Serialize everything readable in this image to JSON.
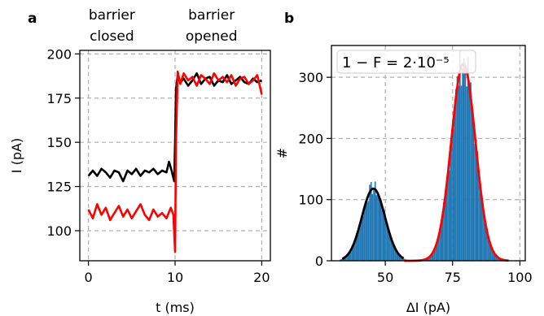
{
  "chart_data": [
    {
      "panel_label": "a",
      "type": "line",
      "annotations": [
        {
          "text": "barrier",
          "x": 2.7
        },
        {
          "text": "closed",
          "x": 2.7
        },
        {
          "text": "barrier",
          "x": 14.2
        },
        {
          "text": "opened",
          "x": 14.2
        }
      ],
      "xlabel": "t (ms)",
      "ylabel": "I (pA)",
      "xlim": [
        -1,
        21
      ],
      "ylim": [
        83,
        202
      ],
      "xticks": [
        0,
        10,
        20
      ],
      "yticks": [
        100,
        125,
        150,
        175,
        200
      ],
      "grid": true,
      "series": [
        {
          "color": "#000000",
          "x": [
            0,
            0.5,
            1,
            1.5,
            2,
            2.5,
            3,
            3.5,
            4,
            4.5,
            5,
            5.5,
            6,
            6.5,
            7,
            7.5,
            8,
            8.5,
            9,
            9.3,
            9.6,
            9.9,
            10.0,
            10.1,
            10.3,
            10.6,
            11,
            11.5,
            12,
            12.5,
            13,
            13.5,
            14,
            14.5,
            15,
            15.5,
            16,
            16.5,
            17,
            17.5,
            18,
            18.5,
            19,
            19.5,
            20
          ],
          "y": [
            131,
            134,
            131,
            135,
            133,
            130,
            134,
            133,
            128,
            134,
            132,
            135,
            131,
            134,
            133,
            135,
            132,
            134,
            133,
            139,
            134,
            128,
            150,
            180,
            188,
            184,
            186,
            182,
            185,
            189,
            183,
            186,
            187,
            182,
            185,
            184,
            188,
            183,
            185,
            187,
            184,
            183,
            186,
            184,
            185
          ]
        },
        {
          "color": "#ff0000",
          "x": [
            0,
            0.5,
            1,
            1.5,
            2,
            2.5,
            3,
            3.5,
            4,
            4.5,
            5,
            5.5,
            6,
            6.5,
            7,
            7.5,
            8,
            8.5,
            9,
            9.5,
            9.8,
            10.0,
            10.1,
            10.3,
            10.6,
            11,
            11.5,
            12,
            12.5,
            13,
            13.5,
            14,
            14.5,
            15,
            15.5,
            16,
            16.5,
            17,
            17.5,
            18,
            18.5,
            19,
            19.5,
            20
          ],
          "y": [
            112,
            107,
            115,
            109,
            113,
            106,
            110,
            114,
            108,
            112,
            107,
            111,
            115,
            109,
            106,
            112,
            108,
            110,
            107,
            113,
            109,
            88,
            150,
            190,
            183,
            189,
            185,
            187,
            182,
            188,
            186,
            183,
            189,
            185,
            187,
            184,
            188,
            182,
            186,
            187,
            183,
            185,
            188,
            177
          ]
        }
      ]
    },
    {
      "panel_label": "b",
      "type": "bar",
      "annotation": "1 − F = 2·10⁻⁵",
      "xlabel": "ΔI (pA)",
      "ylabel": "#",
      "xlim": [
        30,
        102
      ],
      "ylim": [
        0,
        352
      ],
      "xticks": [
        50,
        75,
        100
      ],
      "yticks": [
        0,
        100,
        200,
        300
      ],
      "grid": true,
      "histogram": {
        "color": "#1f77b4",
        "bin_width": 0.5,
        "components": [
          {
            "mean": 45.6,
            "sigma": 4.3,
            "peak": 118
          },
          {
            "mean": 79.0,
            "sigma": 4.5,
            "peak": 322
          }
        ]
      },
      "series": [
        {
          "color": "#000000",
          "type": "gaussian",
          "mean": 45.6,
          "sigma": 4.3,
          "amplitude": 118,
          "x_range": [
            34,
            57
          ]
        },
        {
          "color": "#ff0000",
          "type": "gaussian",
          "mean": 79.0,
          "sigma": 4.5,
          "amplitude": 322,
          "x_range": [
            57,
            96
          ]
        }
      ]
    }
  ]
}
